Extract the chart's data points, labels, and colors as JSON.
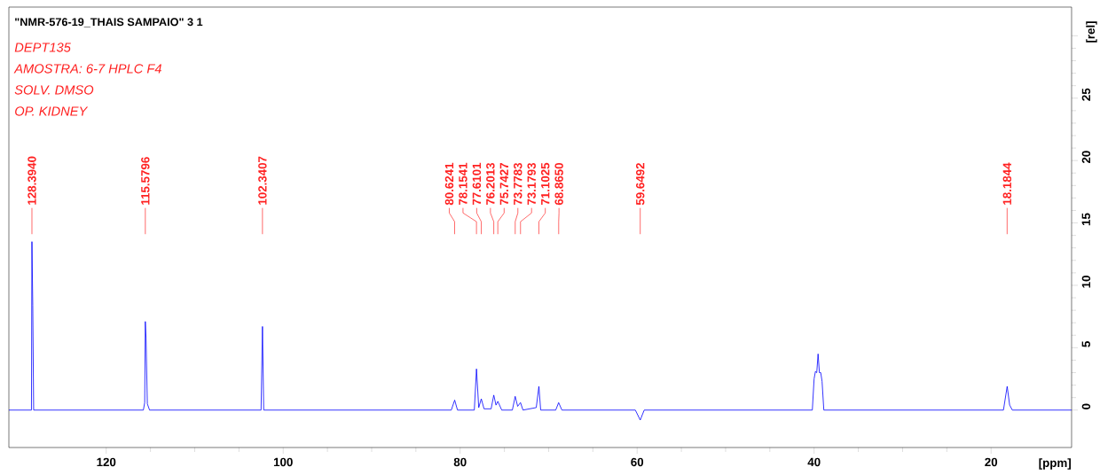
{
  "chart_data": {
    "type": "line",
    "title": "\"NMR-576-19_THAIS SAMPAIO\"  3  1",
    "xlabel": "[ppm]",
    "ylabel": "[rel]",
    "annotations": [
      "DEPT135",
      "AMOSTRA: 6-7 HPLC F4",
      "SOLV. DMSO",
      "OP. KIDNEY",
      {
        "text": "128.3940",
        "x": 128.394
      },
      {
        "text": "115.5796",
        "x": 115.5796
      },
      {
        "text": "102.3407",
        "x": 102.3407
      },
      {
        "text": "80.6241",
        "x": 80.6241
      },
      {
        "text": "78.1541",
        "x": 78.1541
      },
      {
        "text": "77.6101",
        "x": 77.6101
      },
      {
        "text": "76.2013",
        "x": 76.2013
      },
      {
        "text": "75.7427",
        "x": 75.7427
      },
      {
        "text": "73.7783",
        "x": 73.7783
      },
      {
        "text": "73.1793",
        "x": 73.1793
      },
      {
        "text": "71.1025",
        "x": 71.1025
      },
      {
        "text": "68.8650",
        "x": 68.865
      },
      {
        "text": "59.6492",
        "x": 59.6492
      },
      {
        "text": "18.1844",
        "x": 18.1844
      }
    ],
    "series": [
      {
        "color": "#0000ff",
        "x": [
          131,
          128.6,
          128.45,
          128.394,
          128.3,
          128.2,
          125,
          120,
          115.8,
          115.65,
          115.58,
          115.5,
          115.35,
          115.1,
          110,
          105,
          102.5,
          102.34,
          102.2,
          95,
          90,
          85,
          81,
          80.62,
          80.3,
          78.4,
          78.154,
          77.9,
          77.61,
          77.3,
          76.5,
          76.2,
          75.95,
          75.74,
          75.3,
          74.1,
          73.78,
          73.5,
          73.18,
          72.9,
          71.4,
          71.1,
          70.9,
          69.2,
          68.87,
          68.5,
          65,
          60.2,
          59.65,
          59.2,
          55,
          50,
          45,
          40.2,
          40.0,
          39.85,
          39.7,
          39.55,
          39.4,
          39.25,
          39.1,
          38.9,
          35,
          30,
          25,
          18.6,
          18.18,
          17.9,
          17.6,
          15,
          10.9
        ],
        "values": [
          0,
          0,
          0,
          13.5,
          8.4,
          0,
          0,
          0,
          0,
          0.6,
          7.1,
          5.8,
          0.5,
          0,
          0,
          0,
          0,
          6.7,
          0,
          0,
          0,
          0,
          0,
          0.8,
          0,
          0,
          3.3,
          0.2,
          0.9,
          0.1,
          0.1,
          1.2,
          0.4,
          0.7,
          0,
          0,
          1.1,
          0.3,
          0.6,
          0,
          0.2,
          1.9,
          0,
          0,
          0.6,
          0,
          0,
          0,
          -0.8,
          0,
          0,
          0,
          0,
          0,
          2.5,
          3.1,
          3.0,
          4.5,
          3.0,
          3.0,
          2.3,
          0,
          0,
          0,
          0,
          0,
          1.9,
          0.4,
          0,
          0,
          0
        ]
      }
    ],
    "xlim": [
      131,
      10.9
    ],
    "xticks": [
      120,
      100,
      80,
      60,
      40,
      20
    ],
    "ylim": [
      -3,
      32.3
    ],
    "yticks": [
      0,
      5,
      10,
      15,
      20,
      25,
      {
        "value": 30,
        "label": null
      }
    ]
  }
}
